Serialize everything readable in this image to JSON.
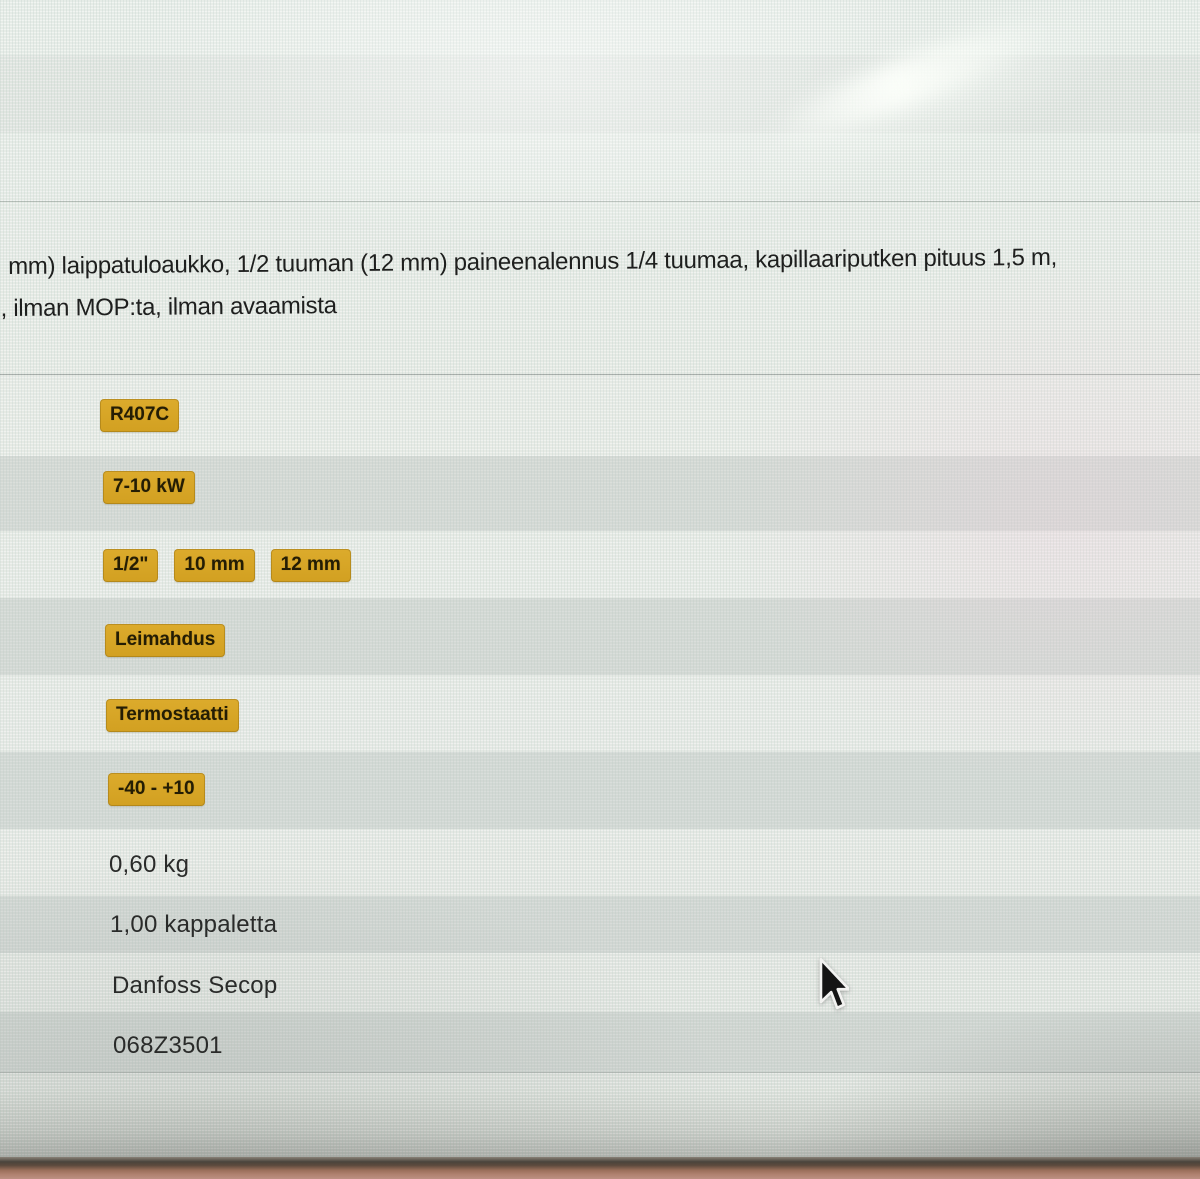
{
  "description": {
    "line1": "mm) laippatuloaukko, 1/2 tuuman (12 mm) paineenalennus 1/4 tuumaa, kapillaariputken pituus 1,5 m,",
    "line2": ", ilman MOP:ta, ilman avaamista"
  },
  "spec_rows": [
    {
      "type": "badges",
      "badges": [
        "R407C"
      ]
    },
    {
      "type": "badges",
      "badges": [
        "7-10 kW"
      ]
    },
    {
      "type": "badges",
      "badges": [
        "1/2\"",
        "10 mm",
        "12 mm"
      ]
    },
    {
      "type": "badges",
      "badges": [
        "Leimahdus"
      ]
    },
    {
      "type": "badges",
      "badges": [
        "Termostaatti"
      ]
    },
    {
      "type": "badges",
      "badges": [
        "-40 - +10"
      ]
    },
    {
      "type": "text",
      "value": "0,60 kg"
    },
    {
      "type": "text",
      "value": "1,00 kappaletta"
    },
    {
      "type": "text",
      "value": "Danfoss Secop"
    },
    {
      "type": "text",
      "value": "068Z3501"
    }
  ],
  "colors": {
    "badge_bg": "#d2a021",
    "badge_bg_light": "#dcab2c",
    "badge_text": "#241d04",
    "screen_bg": "#e8ebe6",
    "row_dark_overlay": "#b7bfbe",
    "desk": "#9a6f5a"
  },
  "cursor": {
    "visible": true,
    "shape": "arrow"
  }
}
